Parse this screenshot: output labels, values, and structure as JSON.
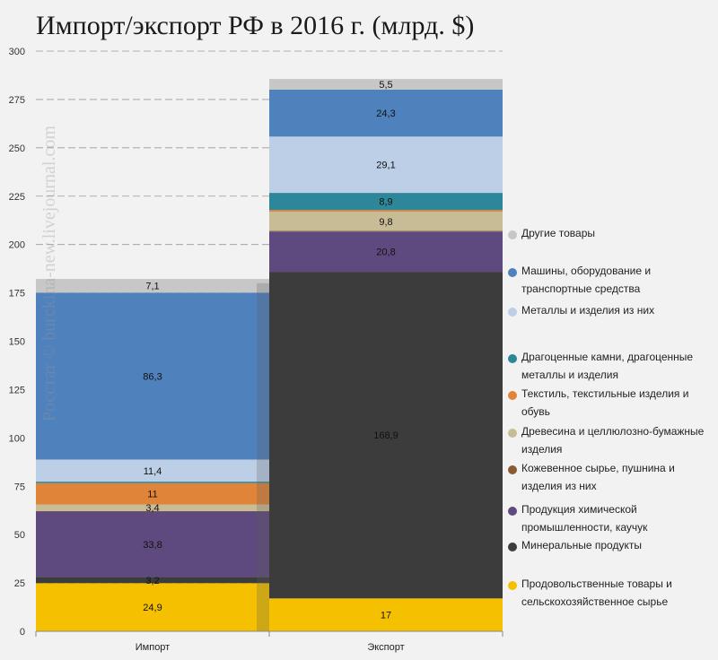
{
  "chart_data": {
    "type": "bar",
    "stacked": true,
    "title": "Импорт/экспорт РФ в 2016 г. (млрд. $)",
    "watermark": "Росстат © burckina-new.livejournal.com",
    "categories": [
      "Импорт",
      "Экспорт"
    ],
    "ylim": [
      0,
      300
    ],
    "yticks": [
      0,
      25,
      50,
      75,
      100,
      125,
      150,
      175,
      200,
      225,
      250,
      275,
      300
    ],
    "grid": true,
    "legend_position": "right",
    "series": [
      {
        "name": "Продовольственные товары и сельскохозяйственное сырье",
        "color": "#f5c000",
        "values": [
          24.9,
          17
        ],
        "labels": [
          "24,9",
          "17"
        ]
      },
      {
        "name": "Минеральные продукты",
        "color": "#3c3c3c",
        "values": [
          3.2,
          168.9
        ],
        "labels": [
          "3,2",
          "168,9"
        ]
      },
      {
        "name": "Продукция химической промышленности, каучук",
        "color": "#5e4a7e",
        "values": [
          33.8,
          20.8
        ],
        "labels": [
          "33,8",
          "20,8"
        ]
      },
      {
        "name": "Кожевенное сырье, пушнина и изделия из них",
        "color": "#8b5a30",
        "values": [
          0.3,
          0.4
        ],
        "labels": [
          "",
          ""
        ]
      },
      {
        "name": "Древесина и целлюлозно-бумажные изделия",
        "color": "#c8bc96",
        "values": [
          3.4,
          9.8
        ],
        "labels": [
          "3,4",
          "9,8"
        ]
      },
      {
        "name": "Текстиль, текстильные изделия и обувь",
        "color": "#e0843a",
        "values": [
          11,
          0.9
        ],
        "labels": [
          "11",
          ""
        ]
      },
      {
        "name": "Драгоценные камни, драгоценные металлы и изделия",
        "color": "#2e8799",
        "values": [
          0.8,
          8.9
        ],
        "labels": [
          "",
          "8,9"
        ]
      },
      {
        "name": "Металлы и изделия из них",
        "color": "#bccfe6",
        "values": [
          11.4,
          29.1
        ],
        "labels": [
          "11,4",
          "29,1"
        ]
      },
      {
        "name": "Машины, оборудование и транспортные средства",
        "color": "#4f81bd",
        "values": [
          86.3,
          24.3
        ],
        "labels": [
          "86,3",
          "24,3"
        ]
      },
      {
        "name": "Другие товары",
        "color": "#c7c7c7",
        "values": [
          7.1,
          5.5
        ],
        "labels": [
          "7,1",
          "5,5"
        ]
      }
    ],
    "legend_order": [
      9,
      8,
      7,
      6,
      5,
      4,
      3,
      2,
      1,
      0
    ]
  }
}
